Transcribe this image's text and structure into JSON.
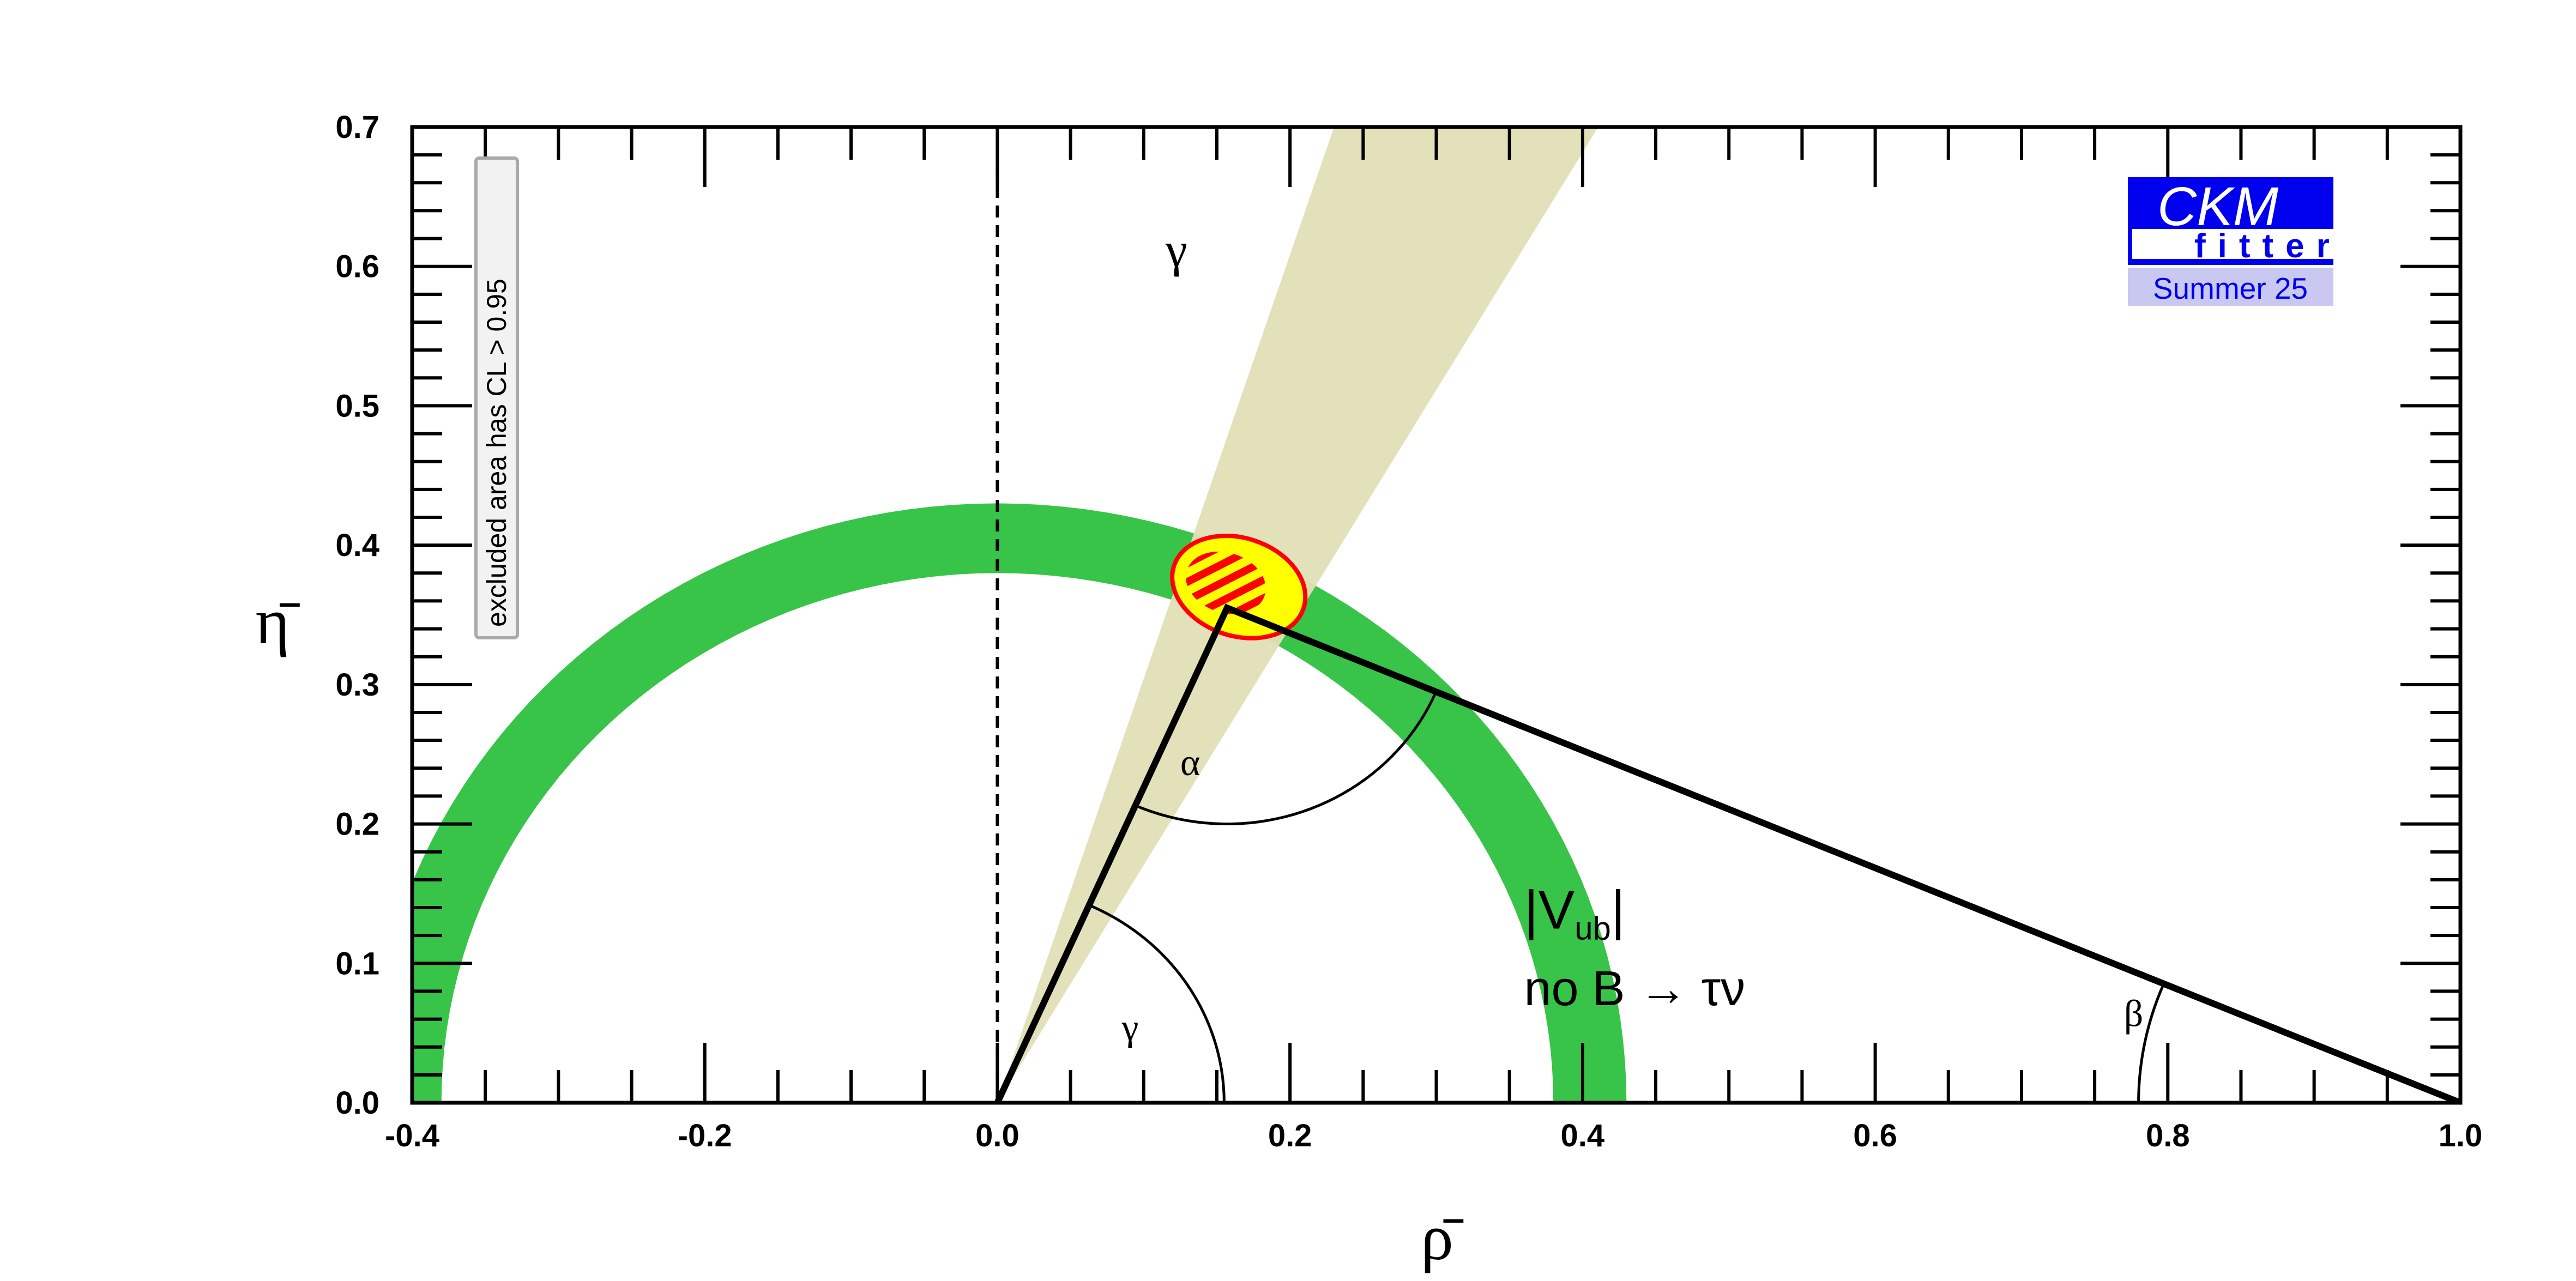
{
  "chart_data": {
    "type": "area",
    "xlabel": "ρ̄",
    "ylabel": "η̄",
    "xlim": [
      -0.4,
      1.0
    ],
    "ylim": [
      0.0,
      0.7
    ],
    "x_ticks": [
      "-0.4",
      "-0.2",
      "0.0",
      "0.2",
      "0.4",
      "0.6",
      "0.8",
      "1.0"
    ],
    "y_ticks": [
      "0.0",
      "0.1",
      "0.2",
      "0.3",
      "0.4",
      "0.5",
      "0.6",
      "0.7"
    ],
    "grid": false,
    "apex": {
      "rho": 0.157,
      "eta": 0.355
    },
    "vub_ring": {
      "inner_radius": 0.38,
      "outer_radius": 0.43,
      "color": "#38c448"
    },
    "gamma_band": {
      "angle_min_deg": 59.6,
      "angle_max_deg": 71.8,
      "color": "#e0dfb6"
    },
    "fit_region": {
      "center_rho": 0.165,
      "center_eta": 0.37,
      "fill": "#ffff00",
      "outline": "#ff0000"
    },
    "annotations": {
      "gamma_band_label": "γ",
      "alpha_label": "α",
      "gamma_angle_label": "γ",
      "beta_label": "β",
      "vub_label_main": "|V",
      "vub_label_sub": "ub",
      "vub_label_close": "|",
      "no_btaunu": "no B → τν",
      "excluded_note": "excluded area has CL > 0.95"
    },
    "logo": {
      "line1": "CKM",
      "line2": "fitter",
      "edition": "Summer 25",
      "color": "#0000ee",
      "edition_bg": "#c8c8f0"
    }
  }
}
